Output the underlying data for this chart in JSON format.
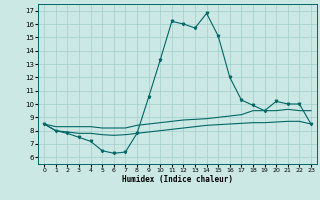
{
  "xlabel": "Humidex (Indice chaleur)",
  "xlim": [
    -0.5,
    23.5
  ],
  "ylim": [
    5.5,
    17.5
  ],
  "xticks": [
    0,
    1,
    2,
    3,
    4,
    5,
    6,
    7,
    8,
    9,
    10,
    11,
    12,
    13,
    14,
    15,
    16,
    17,
    18,
    19,
    20,
    21,
    22,
    23
  ],
  "yticks": [
    6,
    7,
    8,
    9,
    10,
    11,
    12,
    13,
    14,
    15,
    16,
    17
  ],
  "bg_color": "#cce8e5",
  "grid_color": "#a0ceca",
  "line_color": "#006666",
  "line1_x": [
    0,
    1,
    2,
    3,
    4,
    5,
    6,
    7,
    8,
    9,
    10,
    11,
    12,
    13,
    14,
    15,
    16,
    17,
    18,
    19,
    20,
    21,
    22,
    23
  ],
  "line1_y": [
    8.5,
    8.0,
    7.8,
    7.5,
    7.2,
    6.5,
    6.3,
    6.4,
    7.8,
    10.5,
    13.3,
    16.2,
    16.0,
    15.7,
    16.8,
    15.1,
    12.0,
    10.3,
    9.9,
    9.5,
    10.2,
    10.0,
    10.0,
    8.5
  ],
  "line2_x": [
    0,
    1,
    2,
    3,
    4,
    5,
    6,
    7,
    8,
    9,
    10,
    11,
    12,
    13,
    14,
    15,
    16,
    17,
    18,
    19,
    20,
    21,
    22,
    23
  ],
  "line2_y": [
    8.5,
    8.3,
    8.3,
    8.3,
    8.3,
    8.2,
    8.2,
    8.2,
    8.4,
    8.5,
    8.6,
    8.7,
    8.8,
    8.85,
    8.9,
    9.0,
    9.1,
    9.2,
    9.5,
    9.5,
    9.5,
    9.6,
    9.5,
    9.5
  ],
  "line3_x": [
    0,
    1,
    2,
    3,
    4,
    5,
    6,
    7,
    8,
    9,
    10,
    11,
    12,
    13,
    14,
    15,
    16,
    17,
    18,
    19,
    20,
    21,
    22,
    23
  ],
  "line3_y": [
    8.5,
    8.0,
    7.9,
    7.8,
    7.8,
    7.7,
    7.65,
    7.7,
    7.8,
    7.9,
    8.0,
    8.1,
    8.2,
    8.3,
    8.4,
    8.45,
    8.5,
    8.55,
    8.6,
    8.6,
    8.65,
    8.7,
    8.7,
    8.5
  ]
}
